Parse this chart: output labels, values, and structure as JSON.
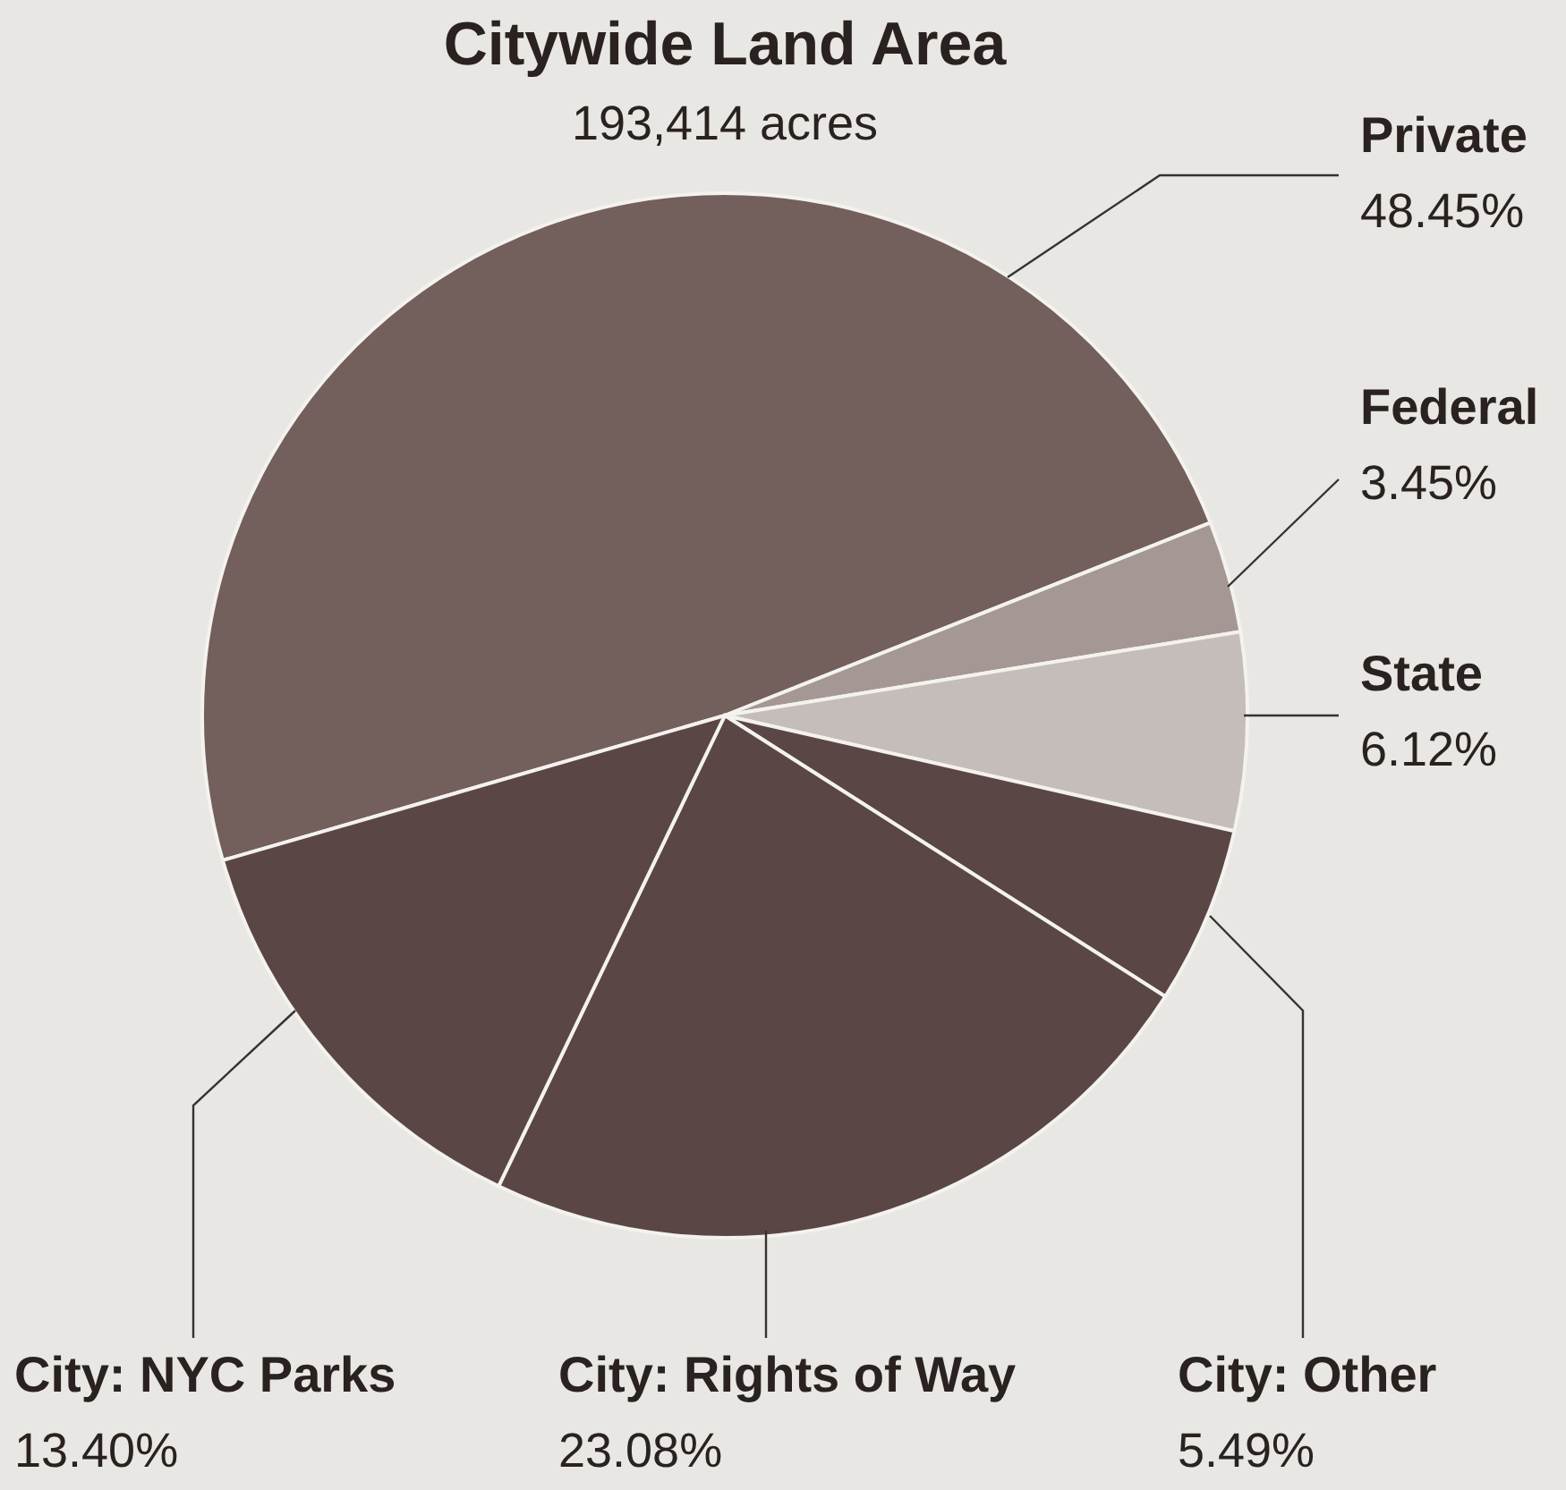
{
  "chart_data": {
    "type": "pie",
    "title": "Citywide Land Area",
    "subtitle": "193,414 acres",
    "categories": [
      "Private",
      "Federal",
      "State",
      "City: Other",
      "City: Rights of Way",
      "City: NYC Parks"
    ],
    "values": [
      48.45,
      3.45,
      6.12,
      5.49,
      23.08,
      13.4
    ],
    "value_labels": [
      "48.45%",
      "3.45%",
      "6.12%",
      "5.49%",
      "23.08%",
      "13.40%"
    ],
    "colors": [
      "#735f5c",
      "#a59794",
      "#c5bdb9",
      "#5a4745",
      "#5a4745",
      "#5a4745"
    ]
  }
}
